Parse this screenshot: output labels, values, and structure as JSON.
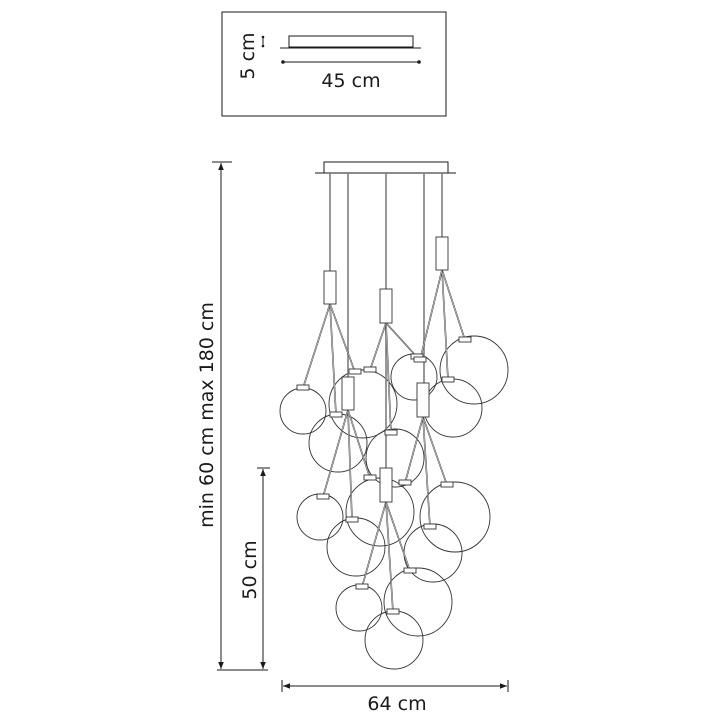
{
  "canopy_inset": {
    "height_label": "5 cm",
    "width_label": "45 cm"
  },
  "dimensions": {
    "total_height_label": "min 60 cm max 180 cm",
    "cluster_height_label": "50 cm",
    "cluster_width_label": "64 cm"
  },
  "colors": {
    "line": "#1a1a1a",
    "background": "#ffffff"
  }
}
